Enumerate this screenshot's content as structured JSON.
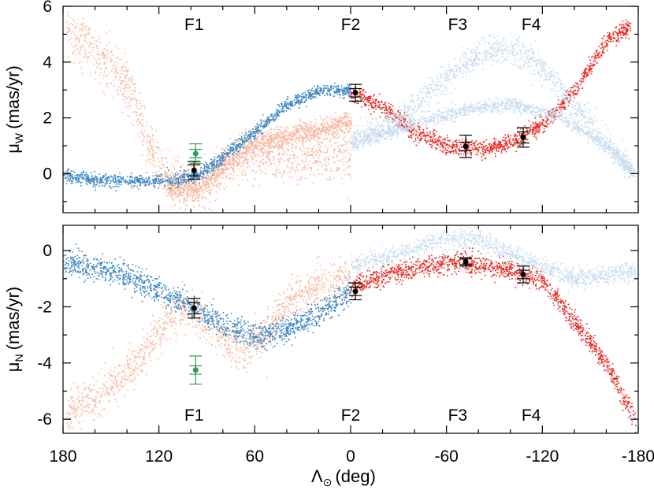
{
  "colors": {
    "dark_blue": "#3a86c2",
    "light_blue": "#c9ddf0",
    "dark_red": "#e8261e",
    "light_red": "#f7b9a3",
    "obs_black": "#000000",
    "obs_green": "#2f9a52"
  },
  "chart_data": {
    "type": "scatter",
    "xlabel_main": "Λ",
    "xlabel_sub": "⊙",
    "xlabel_unit": "(deg)",
    "xlim": [
      180,
      -180
    ],
    "xticks": [
      "180",
      "120",
      "60",
      "0",
      "-60",
      "-120",
      "-180"
    ],
    "field_labels": [
      "F1",
      "F2",
      "F3",
      "F4"
    ],
    "field_x": [
      98,
      0,
      -67,
      -113
    ],
    "panels": [
      {
        "ylabel_main": "μ",
        "ylabel_sub": "W",
        "ylabel_unit": "(mas/yr)",
        "ylim": [
          -1.4,
          6
        ],
        "yticks": [
          "0",
          "2",
          "4",
          "6"
        ],
        "field_label_pos": "top",
        "observations": [
          {
            "field": "F1",
            "color": "black",
            "x": 98,
            "y": 0.12,
            "err_inner": 0.2,
            "err_outer": 0.32
          },
          {
            "field": "F1",
            "color": "green",
            "x": 97,
            "y": 0.72,
            "err_inner": 0.15,
            "err_outer": 0.35
          },
          {
            "field": "F2",
            "color": "black",
            "x": -3,
            "y": 2.9,
            "err_inner": 0.15,
            "err_outer": 0.3
          },
          {
            "field": "F3",
            "color": "black",
            "x": -72,
            "y": 0.98,
            "err_inner": 0.15,
            "err_outer": 0.4
          },
          {
            "field": "F4",
            "color": "black",
            "x": -108,
            "y": 1.3,
            "err_inner": 0.2,
            "err_outer": 0.35
          }
        ],
        "streams": [
          {
            "color": "light_red",
            "curve": [
              [
                178,
                5.2
              ],
              [
                160,
                4.4
              ],
              [
                140,
                3.2
              ],
              [
                125,
                0.8
              ],
              [
                110,
                -0.5
              ],
              [
                95,
                -0.6
              ],
              [
                80,
                0.2
              ],
              [
                60,
                0.7
              ],
              [
                40,
                0.5
              ],
              [
                20,
                0.6
              ],
              [
                0,
                0.7
              ]
            ],
            "spread": 0.45
          },
          {
            "color": "light_red",
            "curve": [
              [
                115,
                -0.45
              ],
              [
                95,
                -0.55
              ],
              [
                80,
                0.3
              ],
              [
                60,
                1.1
              ],
              [
                45,
                1.3
              ],
              [
                25,
                1.5
              ],
              [
                0,
                1.9
              ]
            ],
            "spread": 0.2
          },
          {
            "color": "dark_blue",
            "curve": [
              [
                180,
                -0.05
              ],
              [
                160,
                -0.2
              ],
              [
                130,
                -0.25
              ],
              [
                110,
                -0.2
              ],
              [
                95,
                -0.05
              ],
              [
                80,
                0.6
              ],
              [
                60,
                1.5
              ],
              [
                40,
                2.5
              ],
              [
                20,
                3.0
              ],
              [
                0,
                3.0
              ]
            ],
            "spread": 0.12
          },
          {
            "color": "dark_red",
            "curve": [
              [
                0,
                2.9
              ],
              [
                -20,
                2.4
              ],
              [
                -40,
                1.5
              ],
              [
                -60,
                1.0
              ],
              [
                -80,
                0.9
              ],
              [
                -100,
                1.1
              ],
              [
                -120,
                1.8
              ],
              [
                -140,
                3.0
              ],
              [
                -160,
                4.8
              ],
              [
                -175,
                5.3
              ]
            ],
            "spread": 0.15
          },
          {
            "color": "light_blue",
            "curve": [
              [
                0,
                1.2
              ],
              [
                -30,
                2.0
              ],
              [
                -60,
                3.5
              ],
              [
                -80,
                4.3
              ],
              [
                -100,
                4.5
              ],
              [
                -120,
                3.8
              ],
              [
                -150,
                1.8
              ],
              [
                -175,
                0.1
              ]
            ],
            "spread": 0.25
          },
          {
            "color": "light_blue",
            "curve": [
              [
                0,
                1.1
              ],
              [
                -40,
                1.8
              ],
              [
                -70,
                2.3
              ],
              [
                -100,
                2.5
              ],
              [
                -130,
                2.1
              ],
              [
                -160,
                1.0
              ],
              [
                -178,
                0.0
              ]
            ],
            "spread": 0.12
          }
        ]
      },
      {
        "ylabel_main": "μ",
        "ylabel_sub": "N",
        "ylabel_unit": "(mas/yr)",
        "ylim": [
          -6.5,
          0.9
        ],
        "yticks": [
          "0",
          "-2",
          "-4",
          "-6"
        ],
        "field_label_pos": "bottom",
        "observations": [
          {
            "field": "F1",
            "color": "black",
            "x": 98,
            "y": -2.05,
            "err_inner": 0.2,
            "err_outer": 0.35
          },
          {
            "field": "F1",
            "color": "green",
            "x": 97,
            "y": -4.25,
            "err_inner": 0.15,
            "err_outer": 0.5
          },
          {
            "field": "F2",
            "color": "black",
            "x": -3,
            "y": -1.45,
            "err_inner": 0.15,
            "err_outer": 0.3
          },
          {
            "field": "F3",
            "color": "black",
            "x": -72,
            "y": -0.4,
            "err_inner": 0.1,
            "err_outer": 0.15
          },
          {
            "field": "F4",
            "color": "black",
            "x": -108,
            "y": -0.85,
            "err_inner": 0.15,
            "err_outer": 0.3
          }
        ],
        "streams": [
          {
            "color": "light_red",
            "curve": [
              [
                178,
                -5.8
              ],
              [
                160,
                -5.2
              ],
              [
                140,
                -4.4
              ],
              [
                120,
                -2.8
              ],
              [
                105,
                -2.0
              ],
              [
                90,
                -2.5
              ],
              [
                70,
                -3.6
              ],
              [
                55,
                -3.0
              ],
              [
                40,
                -1.8
              ],
              [
                20,
                -1.2
              ],
              [
                0,
                -1.0
              ]
            ],
            "spread": 0.35
          },
          {
            "color": "dark_blue",
            "curve": [
              [
                180,
                -0.4
              ],
              [
                160,
                -0.6
              ],
              [
                140,
                -0.9
              ],
              [
                120,
                -1.4
              ],
              [
                100,
                -2.0
              ],
              [
                80,
                -2.6
              ],
              [
                60,
                -3.0
              ],
              [
                40,
                -2.8
              ],
              [
                20,
                -2.2
              ],
              [
                0,
                -1.4
              ]
            ],
            "spread": 0.22
          },
          {
            "color": "dark_red",
            "curve": [
              [
                0,
                -1.3
              ],
              [
                -20,
                -0.9
              ],
              [
                -50,
                -0.5
              ],
              [
                -70,
                -0.4
              ],
              [
                -100,
                -0.7
              ],
              [
                -120,
                -1.1
              ],
              [
                -140,
                -2.5
              ],
              [
                -160,
                -4.0
              ],
              [
                -178,
                -6.0
              ]
            ],
            "spread": 0.18
          },
          {
            "color": "light_blue",
            "curve": [
              [
                0,
                -0.5
              ],
              [
                -30,
                -0.1
              ],
              [
                -60,
                0.5
              ],
              [
                -80,
                0.4
              ],
              [
                -110,
                -0.4
              ],
              [
                -140,
                -1.0
              ],
              [
                -178,
                -0.7
              ]
            ],
            "spread": 0.18
          }
        ]
      }
    ]
  }
}
